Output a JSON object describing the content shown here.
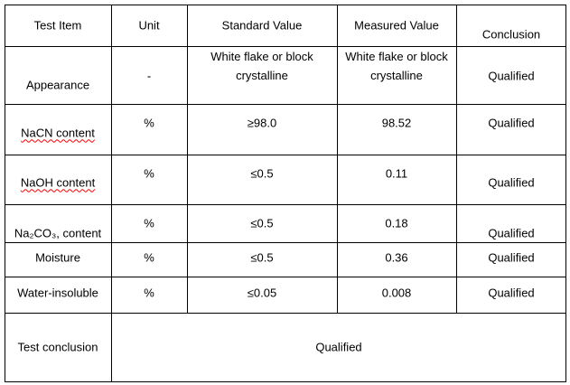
{
  "table": {
    "header": [
      "Test Item",
      "Unit",
      "Standard Value",
      "Measured Value",
      "Conclusion"
    ],
    "rows": [
      [
        "Appearance",
        "-",
        "White flake or block crystalline",
        "White flake or block crystalline",
        "Qualified"
      ],
      [
        "NaCN content",
        "%",
        "≥98.0",
        "98.52",
        "Qualified"
      ],
      [
        "NaOH content",
        "%",
        "≤0.5",
        "0.11",
        "Qualified"
      ],
      [
        "Na₂CO₃, content",
        "%",
        "≤0.5",
        "0.18",
        "Qualified"
      ],
      [
        "Moisture",
        "%",
        "≤0.5",
        "0.36",
        "Qualified"
      ],
      [
        "Water-insoluble",
        "%",
        "≤0.05",
        "0.008",
        "Qualified"
      ]
    ],
    "conclusion": {
      "label": "Test conclusion",
      "value": "Qualified"
    }
  }
}
